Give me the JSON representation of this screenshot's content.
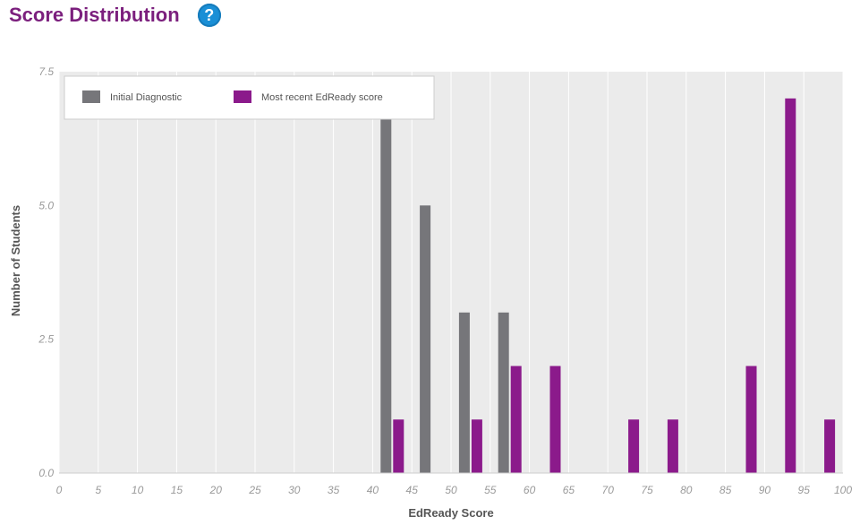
{
  "header": {
    "title": "Score Distribution",
    "help_icon": "question-circle-icon",
    "title_color": "#7b1f7d",
    "help_color": "#1a8fd6"
  },
  "chart_data": {
    "type": "bar",
    "xlabel": "EdReady Score",
    "ylabel": "Number of Students",
    "xlim": [
      0,
      100
    ],
    "ylim": [
      0,
      7.5
    ],
    "x_ticks": [
      "0",
      "5",
      "10",
      "15",
      "20",
      "25",
      "30",
      "35",
      "40",
      "45",
      "50",
      "55",
      "60",
      "65",
      "70",
      "75",
      "80",
      "85",
      "90",
      "95",
      "100"
    ],
    "y_ticks": [
      "0.0",
      "2.5",
      "5.0",
      "7.5"
    ],
    "grid": true,
    "legend_position": "top-left",
    "series": [
      {
        "name": "Initial Diagnostic",
        "color": "#76767a",
        "points": [
          {
            "x": 40,
            "y": 7
          },
          {
            "x": 45,
            "y": 5
          },
          {
            "x": 50,
            "y": 3
          },
          {
            "x": 55,
            "y": 3
          }
        ]
      },
      {
        "name": "Most recent EdReady score",
        "color": "#8b1a8b",
        "points": [
          {
            "x": 40,
            "y": 1
          },
          {
            "x": 50,
            "y": 1
          },
          {
            "x": 55,
            "y": 2
          },
          {
            "x": 60,
            "y": 2
          },
          {
            "x": 70,
            "y": 1
          },
          {
            "x": 75,
            "y": 1
          },
          {
            "x": 85,
            "y": 2
          },
          {
            "x": 90,
            "y": 7
          },
          {
            "x": 95,
            "y": 1
          }
        ]
      }
    ]
  }
}
